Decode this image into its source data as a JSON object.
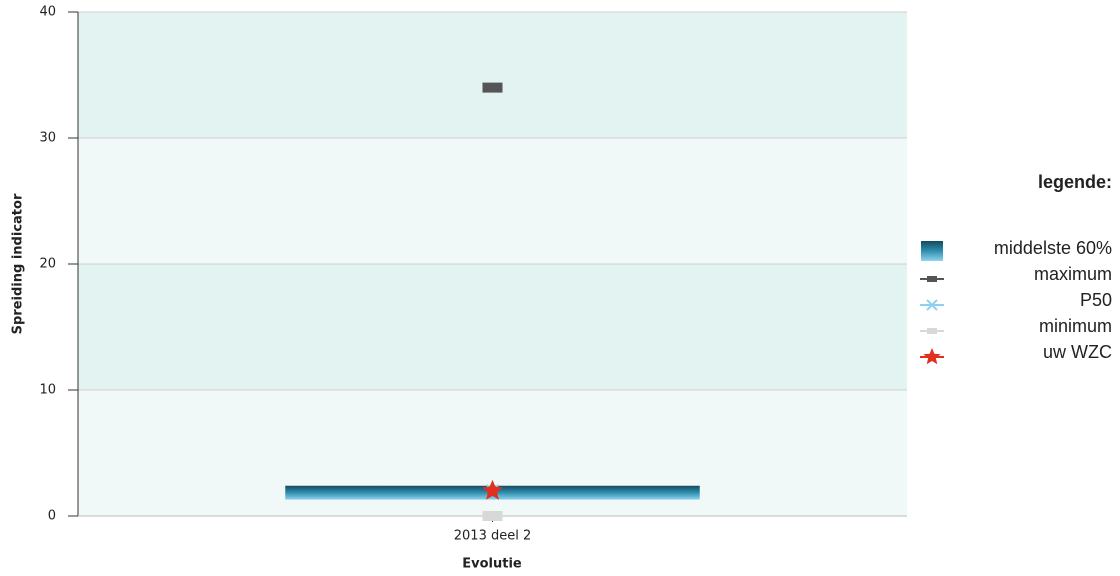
{
  "chart_data": {
    "type": "range_markers",
    "categories": [
      "2013 deel 2"
    ],
    "x_label": "Evolutie",
    "y_label": "Spreiding indicator",
    "ylim": [
      0,
      40
    ],
    "yticks": [
      0,
      10,
      20,
      30,
      40
    ],
    "grid": true,
    "band_colors": [
      "#f0f9f8",
      "#e3f3f1"
    ],
    "legend_title": "legende:",
    "series": [
      {
        "name": "middelste 60%",
        "color": "#2f8fb0",
        "values": [
          [
            1.3,
            2.4
          ]
        ]
      },
      {
        "name": "maximum",
        "color": "#555555",
        "values": [
          34
        ]
      },
      {
        "name": "P50",
        "color": "#8fd0f0",
        "values": [
          2
        ]
      },
      {
        "name": "minimum",
        "color": "#d8d8d8",
        "values": [
          0
        ]
      },
      {
        "name": "uw WZC",
        "color": "#e03020",
        "values": [
          2
        ]
      }
    ]
  }
}
